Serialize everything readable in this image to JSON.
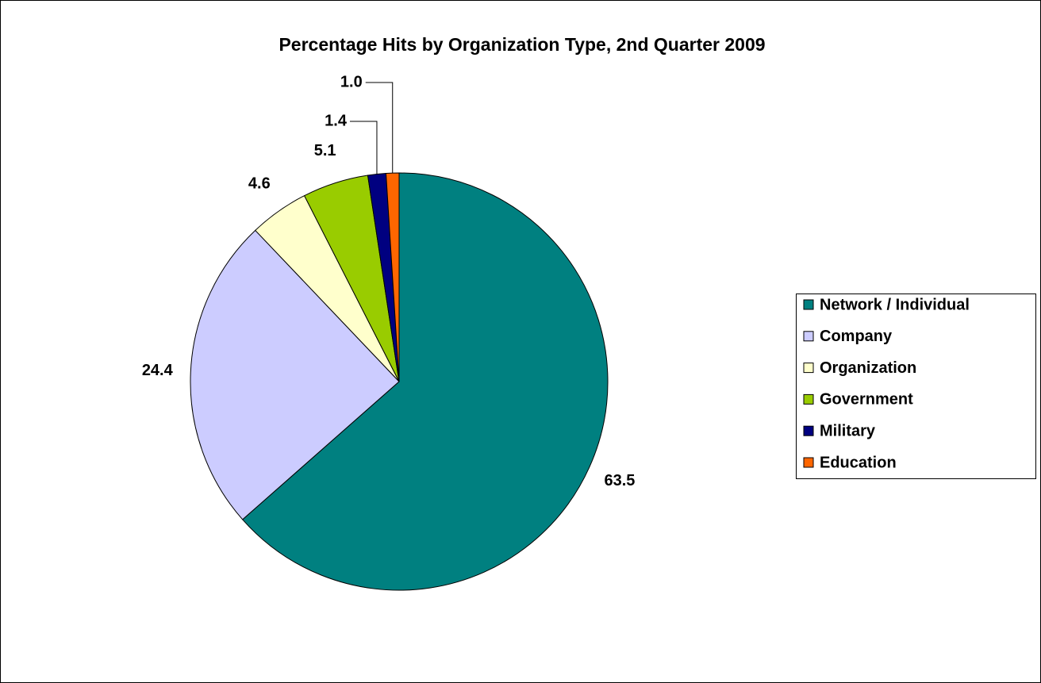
{
  "chart_data": {
    "type": "pie",
    "title": "Percentage Hits by Organization Type, 2nd Quarter 2009",
    "categories": [
      "Network / Individual",
      "Company",
      "Organization",
      "Government",
      "Military",
      "Education"
    ],
    "values": [
      63.5,
      24.4,
      4.6,
      5.1,
      1.4,
      1.0
    ],
    "value_labels": [
      "63.5",
      "24.4",
      "4.6",
      "5.1",
      "1.4",
      "1.0"
    ],
    "colors": [
      "#008080",
      "#ccccff",
      "#ffffcc",
      "#99cc00",
      "#000080",
      "#ff6600"
    ],
    "legend": "right"
  }
}
